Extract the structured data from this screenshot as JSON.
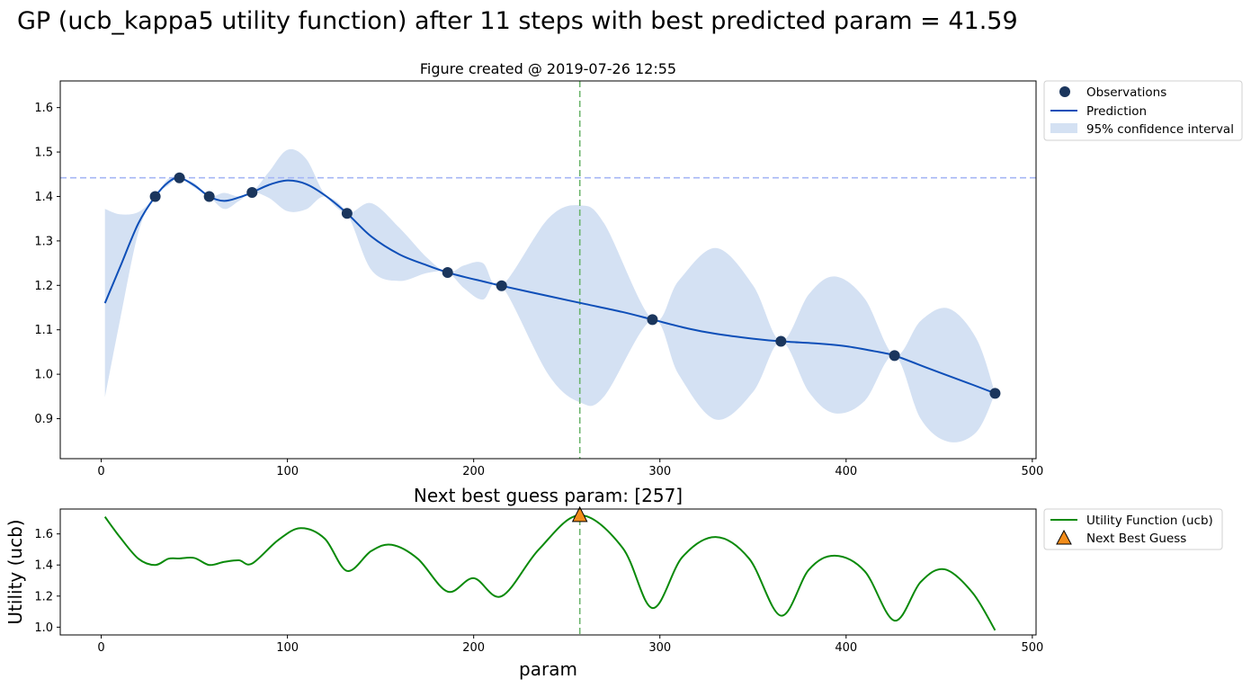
{
  "title": "GP (ucb_kappa5 utility function) after 11 steps with best predicted param = 41.59",
  "chart_data": [
    {
      "type": "line",
      "title": "Figure created @ 2019-07-26 12:55",
      "xlabel": "",
      "ylabel": "",
      "xlim": [
        -22,
        502
      ],
      "ylim": [
        0.81,
        1.66
      ],
      "xticks": [
        0,
        100,
        200,
        300,
        400,
        500
      ],
      "yticks": [
        0.9,
        1.0,
        1.1,
        1.2,
        1.3,
        1.4,
        1.5,
        1.6
      ],
      "observations": {
        "name": "Observations",
        "x": [
          29,
          42,
          58,
          81,
          132,
          186,
          215,
          296,
          365,
          426,
          480
        ],
        "y": [
          1.4,
          1.442,
          1.4,
          1.409,
          1.362,
          1.229,
          1.199,
          1.123,
          1.074,
          1.042,
          0.957
        ]
      },
      "prediction": {
        "name": "Prediction",
        "x": [
          2,
          10,
          20,
          29,
          36,
          42,
          50,
          58,
          66,
          74,
          81,
          90,
          100,
          110,
          120,
          132,
          145,
          160,
          175,
          186,
          195,
          205,
          215,
          240,
          260,
          280,
          296,
          315,
          330,
          350,
          365,
          385,
          400,
          415,
          426,
          445,
          465,
          480
        ],
        "y": [
          1.16,
          1.24,
          1.34,
          1.4,
          1.432,
          1.442,
          1.425,
          1.4,
          1.39,
          1.398,
          1.409,
          1.426,
          1.436,
          1.428,
          1.403,
          1.362,
          1.31,
          1.27,
          1.245,
          1.229,
          1.219,
          1.209,
          1.199,
          1.176,
          1.158,
          1.14,
          1.123,
          1.103,
          1.091,
          1.08,
          1.074,
          1.069,
          1.063,
          1.052,
          1.042,
          1.012,
          0.981,
          0.957
        ]
      },
      "confidence_interval": {
        "name": "95% confidence interval",
        "x": [
          2,
          10,
          20,
          29,
          36,
          42,
          50,
          58,
          66,
          74,
          81,
          90,
          100,
          110,
          120,
          132,
          145,
          160,
          175,
          186,
          195,
          205,
          215,
          240,
          257,
          270,
          296,
          310,
          330,
          350,
          365,
          380,
          394,
          410,
          426,
          440,
          455,
          470,
          480
        ],
        "upper": [
          1.372,
          1.36,
          1.365,
          1.4,
          1.44,
          1.442,
          1.43,
          1.4,
          1.408,
          1.4,
          1.409,
          1.455,
          1.505,
          1.485,
          1.405,
          1.362,
          1.385,
          1.33,
          1.262,
          1.229,
          1.245,
          1.25,
          1.199,
          1.35,
          1.38,
          1.34,
          1.123,
          1.21,
          1.284,
          1.2,
          1.074,
          1.18,
          1.22,
          1.17,
          1.042,
          1.12,
          1.148,
          1.08,
          0.957
        ],
        "lower": [
          0.948,
          1.12,
          1.32,
          1.4,
          1.425,
          1.442,
          1.42,
          1.4,
          1.372,
          1.39,
          1.409,
          1.397,
          1.367,
          1.371,
          1.4,
          1.362,
          1.235,
          1.21,
          1.228,
          1.229,
          1.193,
          1.168,
          1.199,
          1.0,
          0.937,
          0.95,
          1.123,
          1.0,
          0.898,
          0.96,
          1.074,
          0.96,
          0.912,
          0.94,
          1.042,
          0.9,
          0.848,
          0.87,
          0.957
        ]
      },
      "best_observed_line": {
        "y": 1.442
      },
      "next_guess_line": {
        "x": 257
      }
    },
    {
      "type": "line",
      "title": "Next best guess param: [257]",
      "xlabel": "param",
      "ylabel": "Utility (ucb)",
      "xlim": [
        -22,
        502
      ],
      "ylim": [
        0.95,
        1.76
      ],
      "xticks": [
        0,
        100,
        200,
        300,
        400,
        500
      ],
      "yticks": [
        1.0,
        1.2,
        1.4,
        1.6
      ],
      "utility": {
        "name": "Utility Function (ucb)",
        "x": [
          2,
          10,
          20,
          29,
          36,
          42,
          50,
          58,
          66,
          74,
          81,
          95,
          107,
          120,
          132,
          145,
          156,
          170,
          186,
          200,
          215,
          235,
          257,
          280,
          296,
          312,
          330,
          348,
          365,
          380,
          394,
          410,
          426,
          440,
          453,
          468,
          480
        ],
        "y": [
          1.71,
          1.58,
          1.44,
          1.4,
          1.44,
          1.442,
          1.445,
          1.4,
          1.42,
          1.43,
          1.409,
          1.56,
          1.637,
          1.57,
          1.362,
          1.49,
          1.53,
          1.44,
          1.229,
          1.315,
          1.199,
          1.5,
          1.72,
          1.51,
          1.123,
          1.45,
          1.58,
          1.44,
          1.074,
          1.37,
          1.46,
          1.36,
          1.042,
          1.29,
          1.372,
          1.22,
          0.98
        ]
      },
      "next_best_guess": {
        "name": "Next Best Guess",
        "x": 257,
        "y": 1.72
      }
    }
  ],
  "colors": {
    "observations": "#1b365d",
    "prediction": "#0e4fb8",
    "confidence": "#d4e1f3",
    "best_line": "#a6b7f5",
    "guess_line": "#6cb56c",
    "utility": "#0a8a0a",
    "marker": "#f28c1a"
  }
}
